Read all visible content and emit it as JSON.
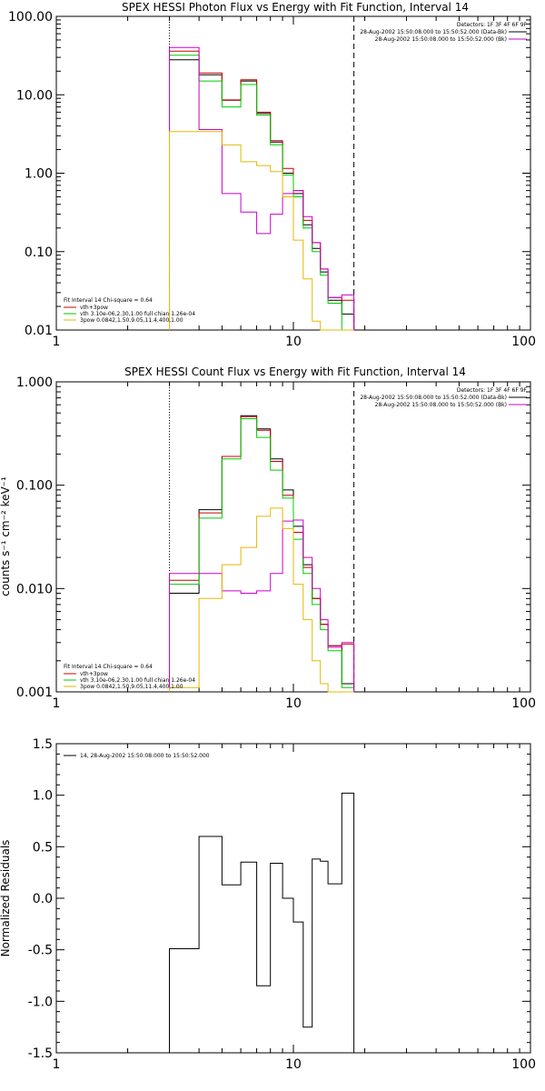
{
  "colors": {
    "black": "#000000",
    "red": "#cc0000",
    "green": "#00cc00",
    "magenta": "#cc00cc",
    "yellow": "#e6b800"
  },
  "panels": [
    {
      "title": "SPEX HESSI Photon Flux vs Energy with Fit Function, Interval 14",
      "ylabel": "",
      "yscale": "log",
      "yrange": [
        0.01,
        100
      ],
      "yticks": [
        {
          "v": 100,
          "label": "100.00"
        },
        {
          "v": 10,
          "label": "10.00"
        },
        {
          "v": 1,
          "label": "1.00"
        },
        {
          "v": 0.1,
          "label": "0.10"
        },
        {
          "v": 0.01,
          "label": "0.01"
        }
      ],
      "xticks": [
        {
          "v": 1,
          "label": "1"
        },
        {
          "v": 10,
          "label": "10"
        },
        {
          "v": 100,
          "label": "100"
        }
      ],
      "info_lines": [
        "Detectors: 1F 3F 4F 6F 9F",
        "28-Aug-2002 15:50:08.000 to 15:50:52.000 (Data-Bk)",
        "28-Aug-2002 15:50:08.000 to 15:50:52.000 (Bk)"
      ],
      "legend_lines": [
        "Fit Interval 14   Chi-square = 0.64",
        "vth+3pow",
        "vth 3.10e-06,2.30,1.00  full chian 1.26e-04",
        "3pow 0.0842,1.50,9.05,11.4,400,1.00"
      ]
    },
    {
      "title": "SPEX HESSI Count Flux vs Energy with Fit Function, Interval 14",
      "ylabel": "counts s⁻¹ cm⁻² keV⁻¹",
      "yscale": "log",
      "yrange": [
        0.001,
        1
      ],
      "yticks": [
        {
          "v": 1,
          "label": "1.000"
        },
        {
          "v": 0.1,
          "label": "0.100"
        },
        {
          "v": 0.01,
          "label": "0.010"
        },
        {
          "v": 0.001,
          "label": "0.001"
        }
      ],
      "xticks": [
        {
          "v": 1,
          "label": "1"
        },
        {
          "v": 10,
          "label": "10"
        },
        {
          "v": 100,
          "label": "100"
        }
      ],
      "info_lines": [
        "Detectors: 1F 3F 4F 6F 9F",
        "28-Aug-2002 15:50:08.000 to 15:50:52.000 (Data-Bk)",
        "28-Aug-2002 15:50:08.000 to 15:50:52.000 (Bk)"
      ],
      "legend_lines": [
        "Fit Interval 14   Chi-square = 0.64",
        "vth+3pow",
        "vth 3.10e-06,2.30,1.00  full chian 1.26e-04",
        "3pow 0.0842,1.50,9.05,11.4,400,1.00"
      ]
    },
    {
      "title": "",
      "ylabel": "Normalized Residuals",
      "yscale": "linear",
      "yrange": [
        -1.5,
        1.5
      ],
      "yticks": [
        {
          "v": 1.5,
          "label": "1.5"
        },
        {
          "v": 1.0,
          "label": "1.0"
        },
        {
          "v": 0.5,
          "label": "0.5"
        },
        {
          "v": 0.0,
          "label": "0.0"
        },
        {
          "v": -0.5,
          "label": "-0.5"
        },
        {
          "v": -1.0,
          "label": "-1.0"
        },
        {
          "v": -1.5,
          "label": "-1.5"
        }
      ],
      "xticks": [
        {
          "v": 1,
          "label": "1"
        },
        {
          "v": 10,
          "label": "10"
        },
        {
          "v": 100,
          "label": "100"
        }
      ],
      "info_lines": [],
      "legend_lines": [
        "14, 28-Aug-2002 15:50:08.000 to 15:50:52.000"
      ]
    }
  ],
  "chart_data": [
    {
      "type": "line",
      "title": "SPEX HESSI Photon Flux vs Energy with Fit Function, Interval 14",
      "xscale": "log",
      "yscale": "log",
      "xlim": [
        1,
        100
      ],
      "ylim": [
        0.01,
        100
      ],
      "vlines": {
        "dotted": 3,
        "dashed": 18
      },
      "edges": [
        3,
        4,
        5,
        6,
        7,
        8,
        9,
        10,
        11,
        12,
        13,
        14,
        16,
        18
      ],
      "series": [
        {
          "color": "#000000",
          "values": [
            28,
            18,
            8.5,
            15,
            5.8,
            2.5,
            1.0,
            0.55,
            0.22,
            0.11,
            0.055,
            0.024,
            0.016
          ]
        },
        {
          "color": "#cc0000",
          "values": [
            36,
            19,
            8.6,
            15.5,
            6.0,
            2.6,
            1.15,
            0.6,
            0.25,
            0.13,
            0.06,
            0.026,
            0.024
          ]
        },
        {
          "color": "#00cc00",
          "values": [
            32,
            15,
            7.0,
            13.5,
            5.5,
            2.3,
            0.95,
            0.5,
            0.2,
            0.1,
            0.05,
            0.022,
            0.01
          ]
        },
        {
          "color": "#cc00cc",
          "values": [
            40,
            3.6,
            0.55,
            0.32,
            0.17,
            0.3,
            0.55,
            0.6,
            0.28,
            0.13,
            0.06,
            0.026,
            0.028
          ]
        },
        {
          "color": "#e6b800",
          "values": [
            3.4,
            3.4,
            2.3,
            1.4,
            1.25,
            1.05,
            0.5,
            0.14,
            0.045,
            0.013,
            0.01,
            0.01,
            0.01
          ]
        }
      ]
    },
    {
      "type": "line",
      "title": "SPEX HESSI Count Flux vs Energy with Fit Function, Interval 14",
      "xscale": "log",
      "yscale": "log",
      "xlim": [
        1,
        100
      ],
      "ylim": [
        0.001,
        1
      ],
      "vlines": {
        "dotted": 3,
        "dashed": 18
      },
      "edges": [
        3,
        4,
        5,
        6,
        7,
        8,
        9,
        10,
        11,
        12,
        13,
        14,
        16,
        18
      ],
      "series": [
        {
          "color": "#000000",
          "values": [
            0.009,
            0.058,
            0.19,
            0.47,
            0.35,
            0.18,
            0.09,
            0.04,
            0.017,
            0.008,
            0.0045,
            0.0028,
            0.0012
          ]
        },
        {
          "color": "#cc0000",
          "values": [
            0.012,
            0.054,
            0.19,
            0.46,
            0.34,
            0.17,
            0.08,
            0.035,
            0.016,
            0.008,
            0.0045,
            0.0028,
            0.0029
          ]
        },
        {
          "color": "#00cc00",
          "values": [
            0.011,
            0.048,
            0.18,
            0.44,
            0.29,
            0.14,
            0.075,
            0.03,
            0.014,
            0.007,
            0.004,
            0.0025,
            0.0011
          ]
        },
        {
          "color": "#cc00cc",
          "values": [
            0.014,
            0.014,
            0.0095,
            0.009,
            0.0095,
            0.014,
            0.045,
            0.046,
            0.02,
            0.01,
            0.005,
            0.0027,
            0.003
          ]
        },
        {
          "color": "#e6b800",
          "values": [
            0.0011,
            0.008,
            0.017,
            0.025,
            0.05,
            0.06,
            0.038,
            0.011,
            0.005,
            0.002,
            0.0012,
            0.001,
            0.001
          ]
        }
      ]
    },
    {
      "type": "line",
      "title": "",
      "ylabel": "Normalized Residuals",
      "xscale": "log",
      "yscale": "linear",
      "xlim": [
        1,
        100
      ],
      "ylim": [
        -1.5,
        1.5
      ],
      "edges": [
        3,
        4,
        5,
        6,
        7,
        8,
        9,
        10,
        11,
        12,
        13,
        14,
        16,
        18
      ],
      "series": [
        {
          "color": "#000000",
          "values": [
            -0.49,
            0.6,
            0.13,
            0.35,
            -0.85,
            0.34,
            0.0,
            -0.23,
            -1.25,
            0.38,
            0.36,
            0.14,
            1.02
          ]
        }
      ]
    }
  ]
}
